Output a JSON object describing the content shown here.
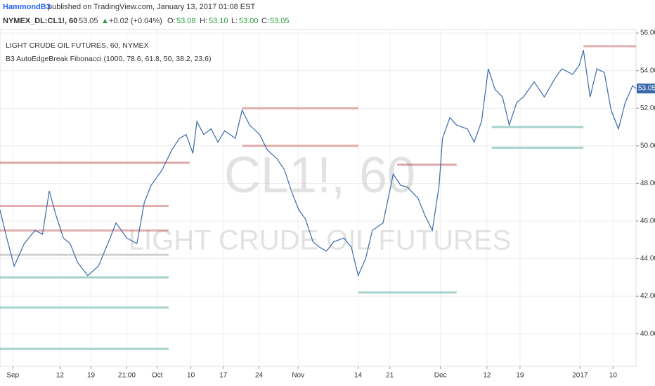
{
  "header": {
    "author": "HammondB3",
    "published": "published on TradingView.com, January 13, 2017 01:08 EST",
    "symbol": "NYMEX_DL:CL1!, 60",
    "price": "53.05",
    "arrow": "▲",
    "change": "+0.02 (+0.04%)",
    "o_label": "O:",
    "o": "53.08",
    "h_label": "H:",
    "h": "53.10",
    "l_label": "L:",
    "l": "53.00",
    "c_label": "C:",
    "c": "53.05"
  },
  "chart_data": {
    "type": "line",
    "legend_title": "LIGHT CRUDE OIL FUTURES, 60, NYMEX",
    "indicator": "B3 AutoEdgeBreak Fibonacci (1000, 78.6, 61.8, 50, 38.2, 23.6)",
    "watermark": [
      "CL1!, 60",
      "LIGHT CRUDE OIL FUTURES"
    ],
    "last_price_label": "53.05",
    "grid": true,
    "xlim": [
      0,
      94.3
    ],
    "ylim": [
      38.27,
      56.19
    ],
    "xticks": [
      {
        "value": 1.9,
        "label": "Sep"
      },
      {
        "value": 8.9,
        "label": "12"
      },
      {
        "value": 13.5,
        "label": "19"
      },
      {
        "value": 18.8,
        "label": "21:00"
      },
      {
        "value": 23.3,
        "label": "Oct"
      },
      {
        "value": 28.3,
        "label": "10"
      },
      {
        "value": 33.1,
        "label": "17"
      },
      {
        "value": 38.4,
        "label": "24"
      },
      {
        "value": 44.2,
        "label": "Nov"
      },
      {
        "value": 53.1,
        "label": "14"
      },
      {
        "value": 57.8,
        "label": "21"
      },
      {
        "value": 65.3,
        "label": "Dec"
      },
      {
        "value": 72.2,
        "label": "12"
      },
      {
        "value": 77.1,
        "label": "19"
      },
      {
        "value": 86.0,
        "label": "2017"
      },
      {
        "value": 90.9,
        "label": "10"
      }
    ],
    "yticks": [
      {
        "value": 40,
        "label": "40.00"
      },
      {
        "value": 42,
        "label": "42.00"
      },
      {
        "value": 44,
        "label": "44.00"
      },
      {
        "value": 46,
        "label": "46.00"
      },
      {
        "value": 48,
        "label": "48.00"
      },
      {
        "value": 50,
        "label": "50.00"
      },
      {
        "value": 52,
        "label": "52.00"
      },
      {
        "value": 54,
        "label": "54.00"
      },
      {
        "value": 56,
        "label": "56.00"
      }
    ],
    "series": [
      {
        "color": "#3a6aa8",
        "x": [
          0,
          1.0,
          2.1,
          3.6,
          5.2,
          6.3,
          7.3,
          8.3,
          9.4,
          10.4,
          11.5,
          13.0,
          14.6,
          16.1,
          17.2,
          18.8,
          20.3,
          21.4,
          22.4,
          24.0,
          25.5,
          26.6,
          27.6,
          28.6,
          29.2,
          30.2,
          31.3,
          32.3,
          33.3,
          34.9,
          35.9,
          37.0,
          38.5,
          39.6,
          41.1,
          42.2,
          43.2,
          44.3,
          45.3,
          46.4,
          47.4,
          48.4,
          49.5,
          51.0,
          52.1,
          53.1,
          54.2,
          55.2,
          56.8,
          58.3,
          59.4,
          60.4,
          62.0,
          63.0,
          64.1,
          65.1,
          65.6,
          66.7,
          67.7,
          69.3,
          70.3,
          71.4,
          72.4,
          73.4,
          74.5,
          75.5,
          76.6,
          77.6,
          79.2,
          80.7,
          82.3,
          83.3,
          84.9,
          85.9,
          86.5,
          87.5,
          88.5,
          89.6,
          90.6,
          91.7,
          92.7,
          93.8,
          94.3
        ],
        "values": [
          46.6,
          45.1,
          43.6,
          44.8,
          45.5,
          45.3,
          47.6,
          46.3,
          45.1,
          44.8,
          43.8,
          43.1,
          43.6,
          44.9,
          45.9,
          45.1,
          44.8,
          47.0,
          47.9,
          48.7,
          49.8,
          50.4,
          50.6,
          49.6,
          51.3,
          50.6,
          50.9,
          50.2,
          50.8,
          50.4,
          51.9,
          51.1,
          50.6,
          49.8,
          49.3,
          48.7,
          47.6,
          46.6,
          46.1,
          44.9,
          44.6,
          44.4,
          44.9,
          45.1,
          44.6,
          43.1,
          44.0,
          45.5,
          45.9,
          48.5,
          47.9,
          47.8,
          47.2,
          46.3,
          45.5,
          47.9,
          50.4,
          51.5,
          51.1,
          50.9,
          50.2,
          51.3,
          54.1,
          53.0,
          52.6,
          51.1,
          52.3,
          52.6,
          53.4,
          52.6,
          53.6,
          54.1,
          53.8,
          54.3,
          55.1,
          52.6,
          54.1,
          53.9,
          51.9,
          50.9,
          52.3,
          53.2,
          53.05
        ]
      }
    ],
    "levels": [
      {
        "value": 49.1,
        "x": [
          0,
          28.1
        ],
        "color": "#b03a3a"
      },
      {
        "value": 46.8,
        "x": [
          0,
          25
        ],
        "color": "#c0504d"
      },
      {
        "value": 45.5,
        "x": [
          0,
          25
        ],
        "color": "#c0504d"
      },
      {
        "value": 44.2,
        "x": [
          0,
          25
        ],
        "color": "#999999"
      },
      {
        "value": 43.0,
        "x": [
          0,
          25
        ],
        "color": "#3a9d8f"
      },
      {
        "value": 41.4,
        "x": [
          0,
          25
        ],
        "color": "#3a9d8f"
      },
      {
        "value": 39.2,
        "x": [
          0,
          25
        ],
        "color": "#3a9d8f"
      },
      {
        "value": 52.0,
        "x": [
          35.9,
          53.1
        ],
        "color": "#c0504d"
      },
      {
        "value": 50.0,
        "x": [
          35.9,
          53.1
        ],
        "color": "#c0504d"
      },
      {
        "value": 49.0,
        "x": [
          58.9,
          67.7
        ],
        "color": "#b03a3a"
      },
      {
        "value": 42.2,
        "x": [
          53.1,
          67.7
        ],
        "color": "#3a9d8f"
      },
      {
        "value": 55.3,
        "x": [
          86.5,
          94.3
        ],
        "color": "#c0504d"
      },
      {
        "value": 51.0,
        "x": [
          72.9,
          86.5
        ],
        "color": "#3a9d8f"
      },
      {
        "value": 49.9,
        "x": [
          72.9,
          86.5
        ],
        "color": "#3a9d8f"
      }
    ]
  }
}
